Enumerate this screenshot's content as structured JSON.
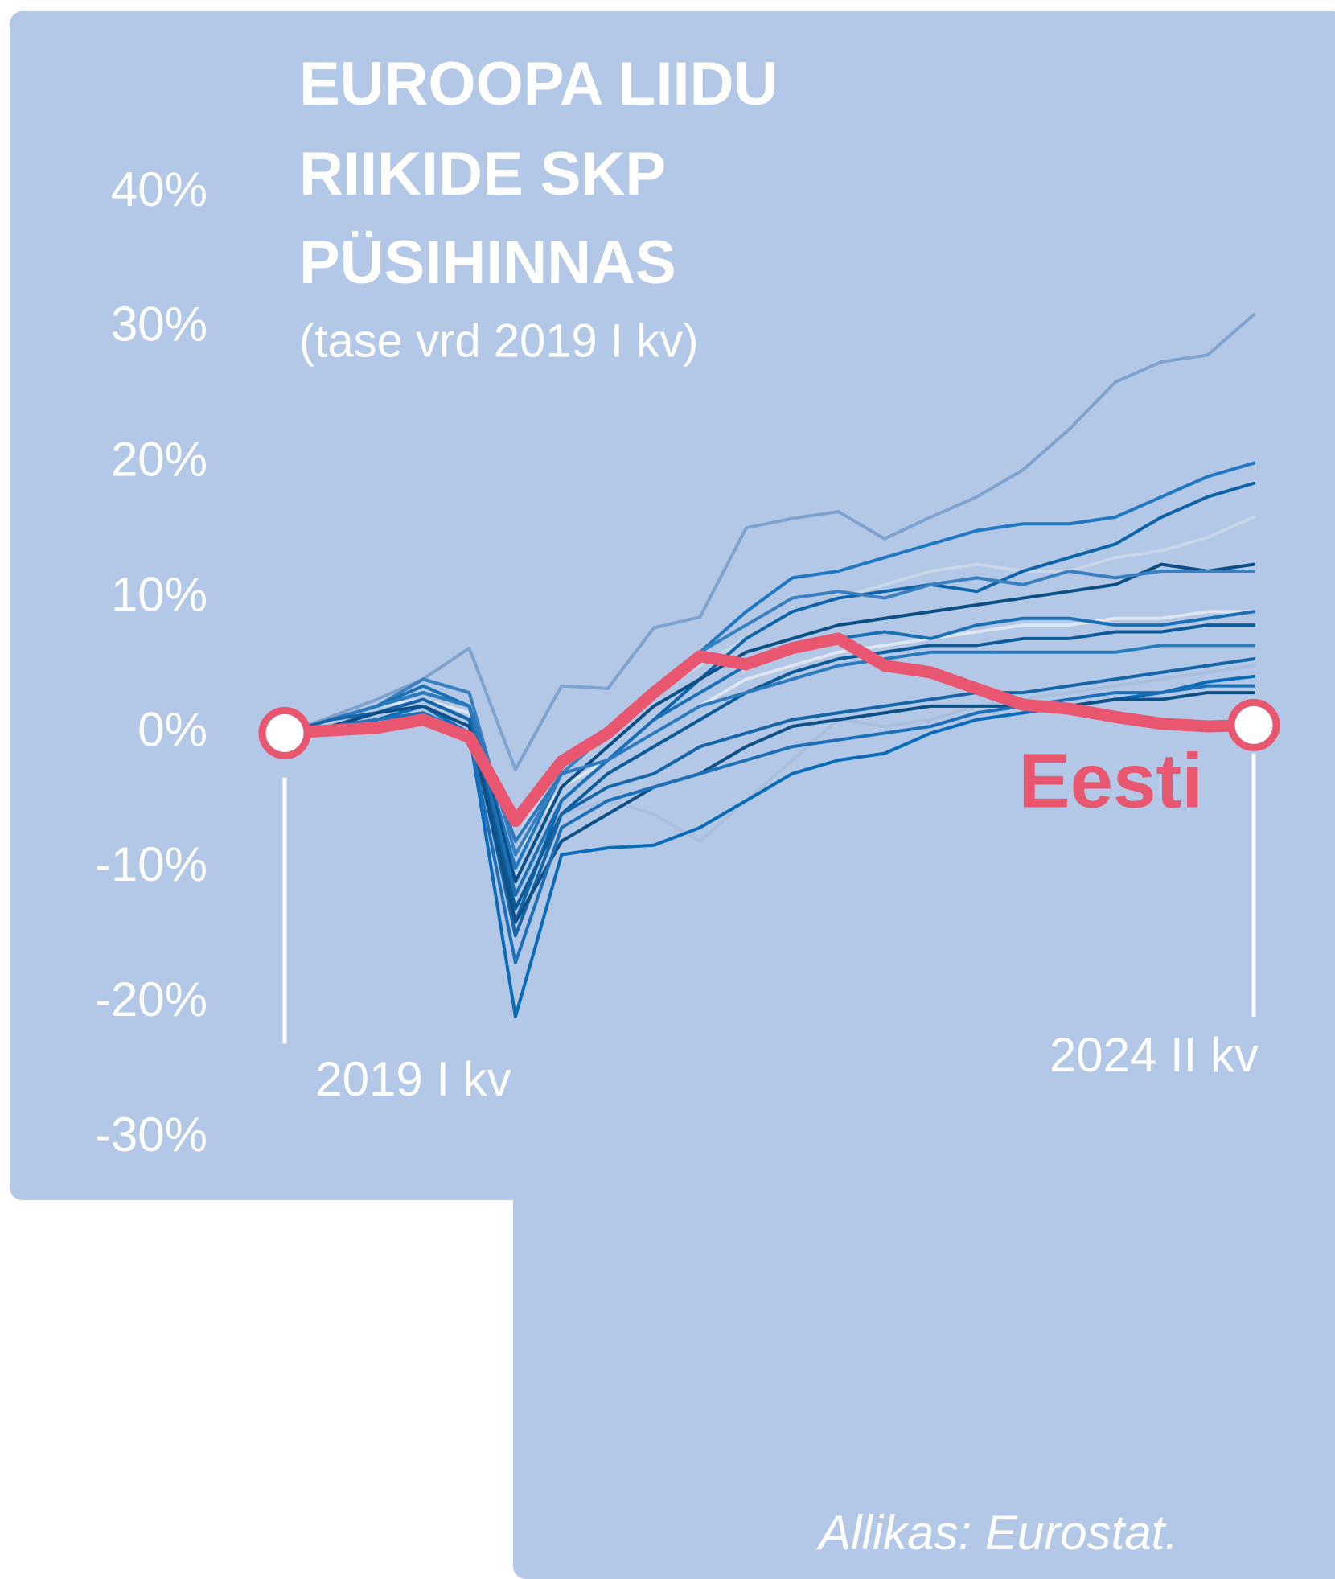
{
  "chart_data": {
    "type": "line",
    "title": [
      "EUROOPA LIIDU",
      "RIIKIDE SKP",
      "PÜSIHINNAS"
    ],
    "subtitle": "(tase vrd 2019 I kv)",
    "source": "Allikas: Eurostat.",
    "categories": [
      "2019 I kv",
      null,
      null,
      null,
      null,
      null,
      null,
      null,
      null,
      null,
      null,
      null,
      null,
      null,
      null,
      null,
      null,
      null,
      null,
      null,
      null,
      "2024 II kv"
    ],
    "ylim": [
      -30,
      40
    ],
    "yticks": [
      {
        "value": 40,
        "label": "40%"
      },
      {
        "value": 30,
        "label": "30%"
      },
      {
        "value": 20,
        "label": "20%"
      },
      {
        "value": 10,
        "label": "10%"
      },
      {
        "value": 0,
        "label": "0%"
      },
      {
        "value": -10,
        "label": "-10%"
      },
      {
        "value": -20,
        "label": "-20%"
      },
      {
        "value": -30,
        "label": "-30%"
      }
    ],
    "grid": false,
    "series": [
      {
        "color": "#7fa3cf",
        "values": [
          0,
          1.2,
          2.5,
          4,
          6.3,
          -2.7,
          3.5,
          3.3,
          7.8,
          8.6,
          15.2,
          15.9,
          16.4,
          14.4,
          16,
          17.5,
          19.5,
          22.5,
          26,
          27.5,
          28,
          31
        ]
      },
      {
        "color": "#c8d6ea",
        "values": [
          0,
          1,
          2,
          3,
          2,
          -8,
          -2,
          0,
          3,
          5,
          7,
          9,
          10,
          11,
          12,
          12.5,
          12,
          12,
          13,
          13.5,
          14.5,
          16
        ]
      },
      {
        "color": "#a9bfdd",
        "values": [
          0,
          1,
          2,
          2.5,
          1.5,
          -12,
          -6,
          -5,
          -6,
          -8,
          -5,
          -2,
          1,
          0.5,
          1,
          2,
          2.5,
          3,
          3.5,
          4,
          4.5,
          5
        ]
      },
      {
        "color": "#dde6f2",
        "values": [
          0,
          1,
          2,
          2.5,
          1.5,
          -9,
          -4,
          -2,
          0,
          2,
          4,
          5,
          6,
          6.5,
          7,
          7.5,
          8,
          8,
          8.5,
          8.5,
          9,
          9
        ]
      },
      {
        "color": "#1f78c1",
        "values": [
          0,
          1,
          2,
          3,
          2,
          -10,
          -3,
          0,
          3,
          6,
          9,
          11.5,
          12,
          13,
          14,
          15,
          15.5,
          15.5,
          16,
          17.5,
          19,
          20
        ]
      },
      {
        "color": "#0e64a8",
        "values": [
          0,
          0.5,
          1.5,
          2.5,
          1,
          -14,
          -5,
          -2,
          1,
          4,
          7,
          9,
          10,
          10.5,
          11,
          10.5,
          12,
          13,
          14,
          16,
          17.5,
          18.5
        ]
      },
      {
        "color": "#0c4f85",
        "values": [
          0,
          1,
          2,
          3,
          2,
          -11,
          -4,
          -1,
          2,
          4,
          6,
          7,
          8,
          8.5,
          9,
          9.5,
          10,
          10.5,
          11,
          12.5,
          12,
          12.5
        ]
      },
      {
        "color": "#3a7fc0",
        "values": [
          0,
          1,
          2,
          4,
          3,
          -9,
          -3,
          0,
          3,
          6,
          8,
          10,
          10.5,
          10,
          11,
          11.5,
          11,
          12,
          11.5,
          12,
          12,
          12
        ]
      },
      {
        "color": "#1a6fb5",
        "values": [
          0,
          1,
          2,
          3.5,
          2,
          -12,
          -5,
          -2,
          1,
          3,
          5,
          6,
          7,
          7.5,
          7,
          8,
          8.5,
          8.5,
          8,
          8,
          8.5,
          9
        ]
      },
      {
        "color": "#0d5a98",
        "values": [
          0,
          0.5,
          1.5,
          2.5,
          1,
          -13,
          -6,
          -3,
          -1,
          1,
          3,
          4.5,
          5.5,
          6,
          6.5,
          6.5,
          7,
          7,
          7.5,
          7.5,
          8,
          8
        ]
      },
      {
        "color": "#2a7abd",
        "values": [
          0,
          1,
          2,
          3,
          2,
          -8,
          -3,
          -2,
          0,
          2,
          3,
          4,
          5,
          5.5,
          6,
          6,
          6,
          6,
          6,
          6.5,
          6.5,
          6.5
        ]
      },
      {
        "color": "#1565a8",
        "values": [
          0,
          1,
          1.5,
          2.5,
          1,
          -15,
          -6,
          -4,
          -3,
          -1,
          0,
          1,
          1.5,
          2,
          2.5,
          3,
          3,
          3.5,
          4,
          4.5,
          5,
          5.5
        ]
      },
      {
        "color": "#0a6bb8",
        "values": [
          0,
          0.5,
          1,
          2,
          0,
          -21,
          -9,
          -8.5,
          -8.3,
          -7,
          -5,
          -3,
          -2,
          -1.5,
          0,
          1,
          1.5,
          2,
          2.5,
          3,
          3.8,
          4.2
        ]
      },
      {
        "color": "#0e4f86",
        "values": [
          0,
          0.5,
          1.5,
          2,
          0.5,
          -14,
          -8,
          -6,
          -4,
          -3,
          -1,
          0.5,
          1,
          1.5,
          2,
          2,
          2,
          2,
          2.5,
          2.5,
          3,
          3
        ]
      },
      {
        "color": "#1d70b8",
        "values": [
          0,
          0.5,
          1,
          1.5,
          0,
          -17,
          -7,
          -5,
          -4,
          -3,
          -2,
          -1,
          -0.5,
          0,
          0.5,
          1.5,
          2,
          2.5,
          3,
          3,
          3.5,
          3.5
        ]
      },
      {
        "name": "Eesti",
        "color": "#e8566f",
        "values": [
          0,
          0.2,
          0.4,
          1,
          -0.3,
          -6.5,
          -2.1,
          0,
          3,
          5.7,
          5.1,
          6.3,
          7,
          5,
          4.5,
          3.3,
          2.1,
          1.8,
          1.2,
          0.7,
          0.5,
          0.6
        ]
      }
    ]
  }
}
